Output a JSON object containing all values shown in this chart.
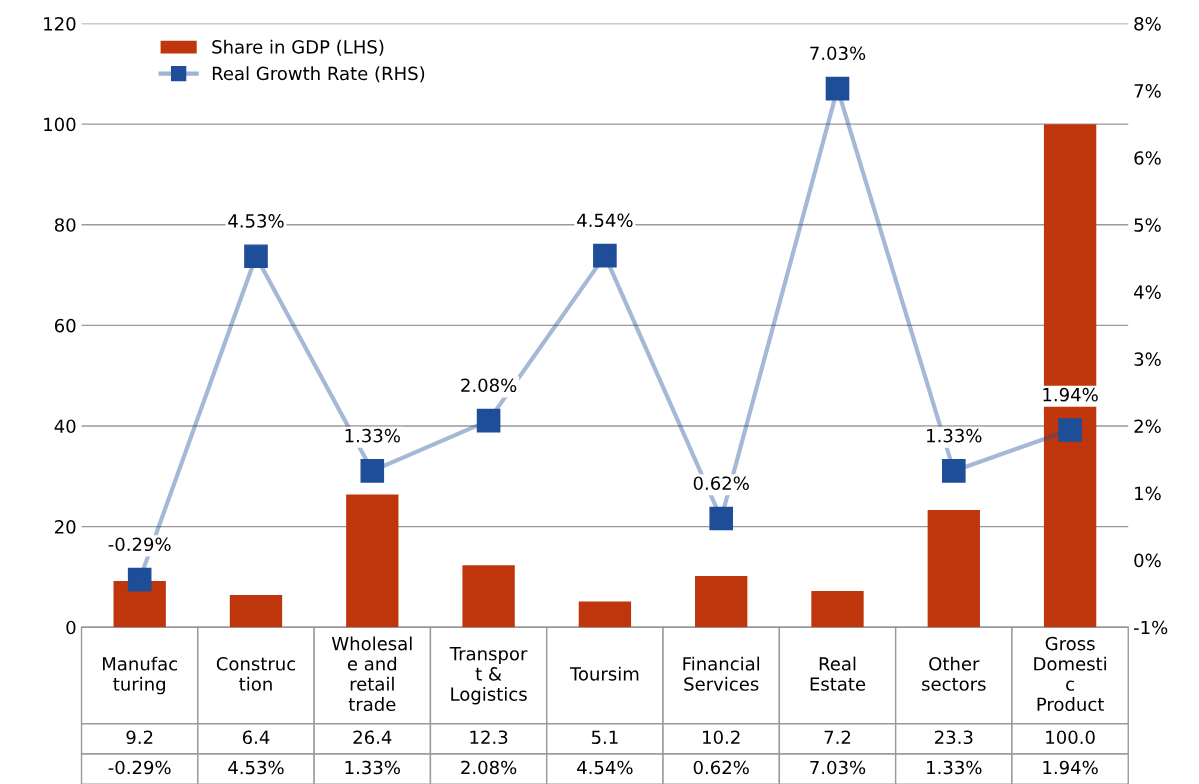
{
  "chart_data": {
    "type": "bar",
    "categories": [
      "Manufac\nturing",
      "Construc\ntion",
      "Wholesal\ne and\nretail\ntrade",
      "Transpor\nt &\nLogistics",
      "Toursim",
      "Financial\nServices",
      "Real\nEstate",
      "Other\nsectors",
      "Gross\nDomesti\nc\nProduct"
    ],
    "series": [
      {
        "name": "Share in GDP (LHS)",
        "color": "#c0360c",
        "values": [
          9.2,
          6.4,
          26.4,
          12.3,
          5.1,
          10.2,
          7.2,
          23.3,
          100.0
        ],
        "value_labels": [
          "9.2",
          "6.4",
          "26.4",
          "12.3",
          "5.1",
          "10.2",
          "7.2",
          "23.3",
          "100.0"
        ]
      },
      {
        "name": "Real Growth Rate (RHS)",
        "type": "line",
        "axis": "y2",
        "color": "#1f4e99",
        "marker": "square",
        "values": [
          -0.29,
          4.53,
          1.33,
          2.08,
          4.54,
          0.62,
          7.03,
          1.33,
          1.94
        ],
        "value_labels": [
          "-0.29%",
          "4.53%",
          "1.33%",
          "2.08%",
          "4.54%",
          "0.62%",
          "7.03%",
          "1.33%",
          "1.94%"
        ]
      }
    ],
    "ylim": [
      0,
      120
    ],
    "yticks": [
      0,
      20,
      40,
      60,
      80,
      100,
      120
    ],
    "y2lim": [
      -1,
      8
    ],
    "y2ticks": [
      {
        "value": -1,
        "label": "-1%"
      },
      {
        "value": 0,
        "label": "0%"
      },
      {
        "value": 1,
        "label": "1%"
      },
      {
        "value": 2,
        "label": "2%"
      },
      {
        "value": 3,
        "label": "3%"
      },
      {
        "value": 4,
        "label": "4%"
      },
      {
        "value": 5,
        "label": "5%"
      },
      {
        "value": 6,
        "label": "6%"
      },
      {
        "value": 7,
        "label": "7%"
      },
      {
        "value": 8,
        "label": "8%"
      }
    ],
    "grid": "y",
    "legend": "top left",
    "data_labels": true
  }
}
